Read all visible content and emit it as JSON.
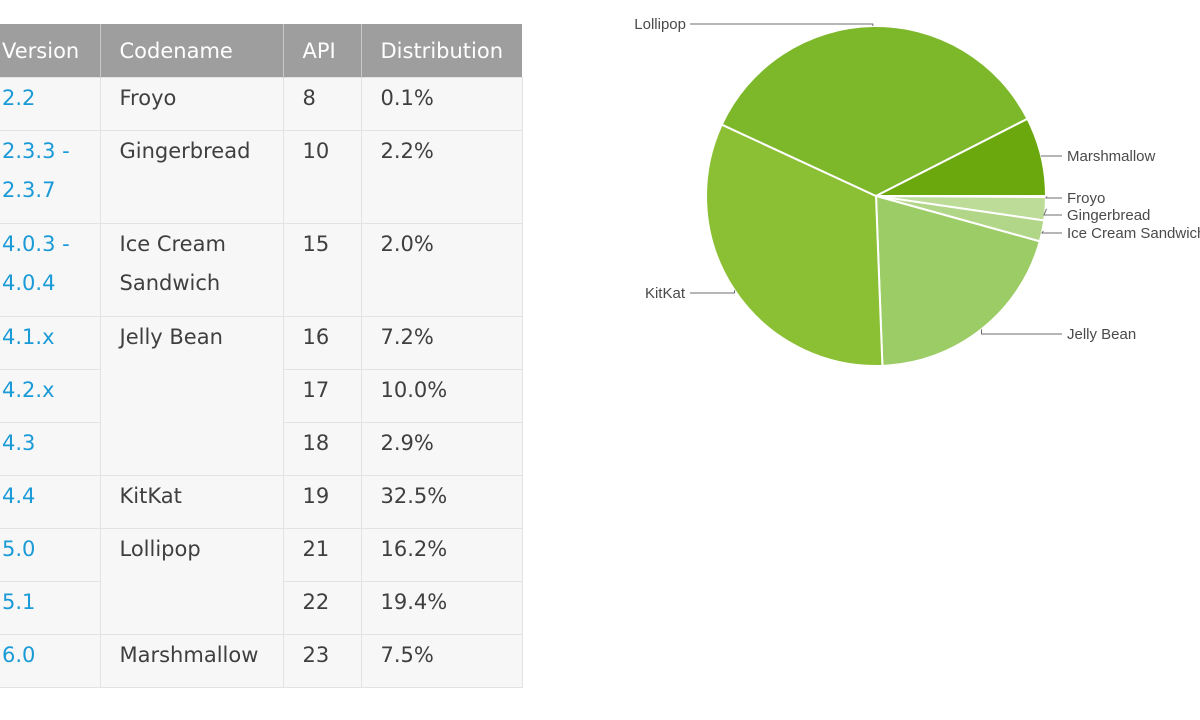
{
  "table": {
    "headers": [
      "Version",
      "Codename",
      "API",
      "Distribution"
    ],
    "rows": [
      {
        "version": "2.2",
        "codename": "Froyo",
        "api": "8",
        "distribution": "0.1%"
      },
      {
        "version_line1": "2.3.3 -",
        "version_line2": "2.3.7",
        "codename": "Gingerbread",
        "api": "10",
        "distribution": "2.2%"
      },
      {
        "version_line1": "4.0.3 -",
        "version_line2": "4.0.4",
        "codename_line1": "Ice Cream",
        "codename_line2": "Sandwich",
        "api": "15",
        "distribution": "2.0%"
      },
      {
        "version": "4.1.x",
        "codename": "Jelly Bean",
        "api": "16",
        "distribution": "7.2%"
      },
      {
        "version": "4.2.x",
        "api": "17",
        "distribution": "10.0%"
      },
      {
        "version": "4.3",
        "api": "18",
        "distribution": "2.9%"
      },
      {
        "version": "4.4",
        "codename": "KitKat",
        "api": "19",
        "distribution": "32.5%"
      },
      {
        "version": "5.0",
        "codename": "Lollipop",
        "api": "21",
        "distribution": "16.2%"
      },
      {
        "version": "5.1",
        "api": "22",
        "distribution": "19.4%"
      },
      {
        "version": "6.0",
        "codename": "Marshmallow",
        "api": "23",
        "distribution": "7.5%"
      }
    ]
  },
  "chart_data": {
    "type": "pie",
    "title": "",
    "slices": [
      {
        "label": "Froyo",
        "value": 0.1,
        "color": "#c5e1a5"
      },
      {
        "label": "Gingerbread",
        "value": 2.2,
        "color": "#bddc97"
      },
      {
        "label": "Ice Cream Sandwich",
        "value": 2.0,
        "color": "#b2d687"
      },
      {
        "label": "Jelly Bean",
        "value": 20.1,
        "color": "#9ccc65"
      },
      {
        "label": "KitKat",
        "value": 32.5,
        "color": "#8bc034"
      },
      {
        "label": "Lollipop",
        "value": 35.6,
        "color": "#7cb82a"
      },
      {
        "label": "Marshmallow",
        "value": 7.5,
        "color": "#6aa80e"
      }
    ]
  }
}
